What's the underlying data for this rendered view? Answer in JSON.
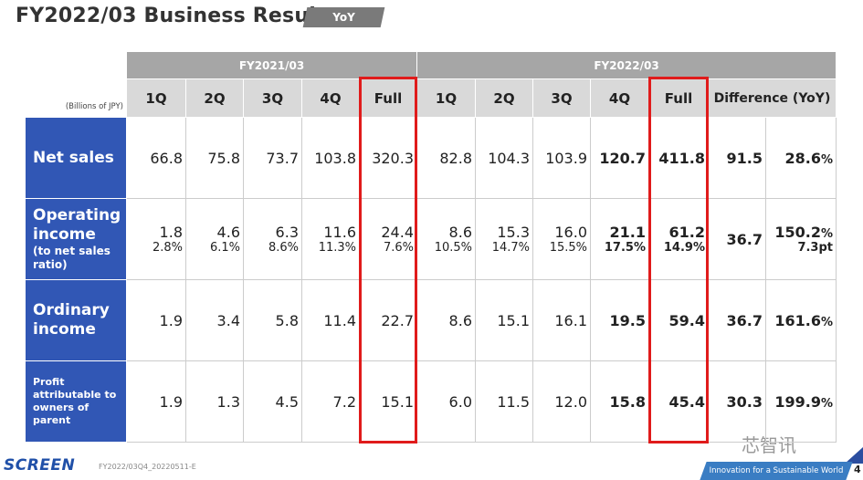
{
  "title": "FY2022/03 Business Results",
  "badge": "YoY",
  "unit": "(Billions of JPY)",
  "periods": {
    "prev": "FY2021/03",
    "curr": "FY2022/03",
    "diff": "Difference (YoY)"
  },
  "quarters": [
    "1Q",
    "2Q",
    "3Q",
    "4Q",
    "Full"
  ],
  "rows": [
    {
      "label": "Net sales",
      "values": [
        "66.8",
        "75.8",
        "73.7",
        "103.8",
        "320.3",
        "82.8",
        "104.3",
        "103.9",
        "120.7",
        "411.8"
      ],
      "diff": "91.5",
      "diff_pct": "28.6",
      "pct_sign": "%"
    },
    {
      "label": "Operating income",
      "sublabel": "(to net sales ratio)",
      "values": [
        "1.8",
        "4.6",
        "6.3",
        "11.6",
        "24.4",
        "8.6",
        "15.3",
        "16.0",
        "21.1",
        "61.2"
      ],
      "ratios": [
        "2.8%",
        "6.1%",
        "8.6%",
        "11.3%",
        "7.6%",
        "10.5%",
        "14.7%",
        "15.5%",
        "17.5%",
        "14.9%"
      ],
      "diff": "36.7",
      "diff_pct": "150.2",
      "pct_sign": "%",
      "diff_pt": "7.3pt"
    },
    {
      "label": "Ordinary income",
      "values": [
        "1.9",
        "3.4",
        "5.8",
        "11.4",
        "22.7",
        "8.6",
        "15.1",
        "16.1",
        "19.5",
        "59.4"
      ],
      "diff": "36.7",
      "diff_pct": "161.6",
      "pct_sign": "%"
    },
    {
      "label": "Profit attributable to owners of parent",
      "values": [
        "1.9",
        "1.3",
        "4.5",
        "7.2",
        "15.1",
        "6.0",
        "11.5",
        "12.0",
        "15.8",
        "45.4"
      ],
      "diff": "30.3",
      "diff_pct": "199.9",
      "pct_sign": "%"
    }
  ],
  "footer": {
    "logo": "SCREEN",
    "doc_id": "FY2022/03Q4_20220511-E",
    "tagline": "Innovation for a Sustainable World",
    "page": "4",
    "watermark": "芯智讯"
  },
  "colors": {
    "label_bg": "#3157b5",
    "highlight": "#e01b1b"
  }
}
